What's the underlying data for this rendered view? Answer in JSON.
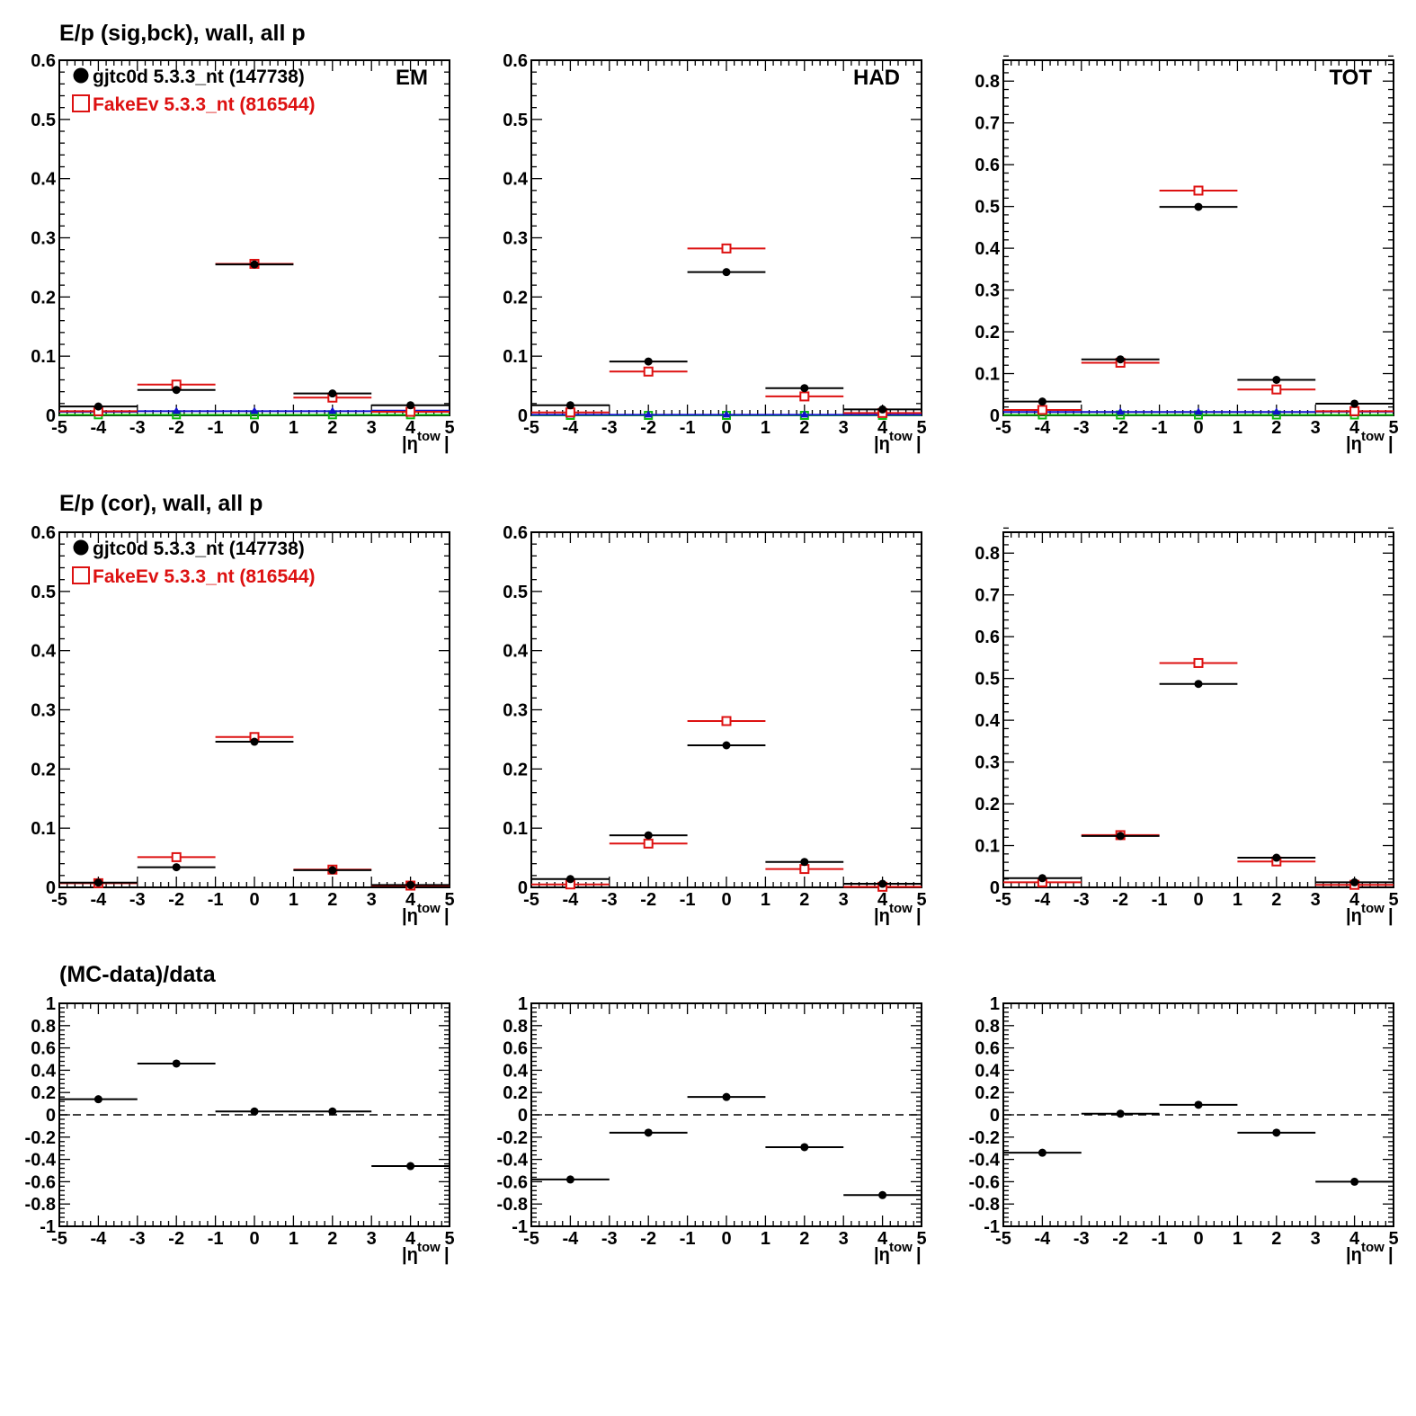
{
  "x_axis_label": "|η",
  "x_axis_label_sup": "tow",
  "x_axis_label_close": "|",
  "x_tick_labels": [
    "-5",
    "-4",
    "-3",
    "-2",
    "-1",
    "0",
    "1",
    "2",
    "3",
    "4",
    "5"
  ],
  "row_titles": [
    "E/p (sig,bck), wall, all p",
    "E/p (cor), wall, all p",
    "(MC-data)/data"
  ],
  "legend": [
    {
      "label": "gjtc0d 5.3.3_nt (147738)",
      "color": "#000000",
      "marker": "filled-circle"
    },
    {
      "label": "FakeEv 5.3.3_nt (816544)",
      "color": "#dd1111",
      "marker": "open-square"
    }
  ],
  "colors": {
    "data": "#000000",
    "mc": "#dd1111",
    "bck_data": "#1111cc",
    "bck_mc": "#11bb11",
    "zero_line": "#000000"
  },
  "chart_data": [
    {
      "type": "scatter",
      "row": 0,
      "col": 0,
      "panel_label": "EM",
      "legend": true,
      "xlim": [
        -5,
        5
      ],
      "ylim": [
        0,
        0.6
      ],
      "yticks": [
        0,
        0.1,
        0.2,
        0.3,
        0.4,
        0.5,
        0.6
      ],
      "ytick_labels": [
        "0",
        "0.1",
        "0.2",
        "0.3",
        "0.4",
        "0.5",
        "0.6"
      ],
      "bins": [
        [
          -5,
          -3
        ],
        [
          -3,
          -1
        ],
        [
          -1,
          1
        ],
        [
          1,
          3
        ],
        [
          3,
          5
        ]
      ],
      "series": [
        {
          "name": "gjtc0d 5.3.3_nt (147738)",
          "style": "data",
          "values": [
            0.015,
            0.043,
            0.255,
            0.037,
            0.017
          ]
        },
        {
          "name": "FakeEv 5.3.3_nt (816544)",
          "style": "mc",
          "values": [
            0.007,
            0.052,
            0.256,
            0.03,
            0.006
          ]
        },
        {
          "style": "bck_data",
          "values": [
            0.006,
            0.007,
            0.007,
            0.007,
            0.008
          ]
        },
        {
          "style": "bck_mc",
          "values": [
            0.001,
            0.001,
            0.001,
            0.001,
            0.001
          ]
        }
      ]
    },
    {
      "type": "scatter",
      "row": 0,
      "col": 1,
      "panel_label": "HAD",
      "legend": false,
      "xlim": [
        -5,
        5
      ],
      "ylim": [
        0,
        0.6
      ],
      "yticks": [
        0,
        0.1,
        0.2,
        0.3,
        0.4,
        0.5,
        0.6
      ],
      "ytick_labels": [
        "0",
        "0.1",
        "0.2",
        "0.3",
        "0.4",
        "0.5",
        "0.6"
      ],
      "bins": [
        [
          -5,
          -3
        ],
        [
          -3,
          -1
        ],
        [
          -1,
          1
        ],
        [
          1,
          3
        ],
        [
          3,
          5
        ]
      ],
      "series": [
        {
          "style": "data",
          "values": [
            0.017,
            0.091,
            0.242,
            0.046,
            0.01
          ]
        },
        {
          "style": "mc",
          "values": [
            0.005,
            0.074,
            0.282,
            0.032,
            0.004
          ]
        },
        {
          "style": "bck_data",
          "values": [
            0.001,
            0.001,
            0.001,
            0.001,
            0.001
          ]
        },
        {
          "style": "bck_mc",
          "values": [
            0.0,
            0.0,
            0.0,
            0.0,
            0.0
          ]
        }
      ]
    },
    {
      "type": "scatter",
      "row": 0,
      "col": 2,
      "panel_label": "TOT",
      "legend": false,
      "xlim": [
        -5,
        5
      ],
      "ylim": [
        0,
        0.85
      ],
      "yticks": [
        0,
        0.1,
        0.2,
        0.3,
        0.4,
        0.5,
        0.6,
        0.7,
        0.8
      ],
      "ytick_labels": [
        "0",
        "0.1",
        "0.2",
        "0.3",
        "0.4",
        "0.5",
        "0.6",
        "0.7",
        "0.8"
      ],
      "bins": [
        [
          -5,
          -3
        ],
        [
          -3,
          -1
        ],
        [
          -1,
          1
        ],
        [
          1,
          3
        ],
        [
          3,
          5
        ]
      ],
      "series": [
        {
          "style": "data",
          "values": [
            0.033,
            0.134,
            0.499,
            0.085,
            0.028
          ]
        },
        {
          "style": "mc",
          "values": [
            0.013,
            0.126,
            0.538,
            0.062,
            0.01
          ]
        },
        {
          "style": "bck_data",
          "values": [
            0.008,
            0.008,
            0.008,
            0.008,
            0.009
          ]
        },
        {
          "style": "bck_mc",
          "values": [
            0.001,
            0.001,
            0.001,
            0.001,
            0.001
          ]
        }
      ]
    },
    {
      "type": "scatter",
      "row": 1,
      "col": 0,
      "panel_label": "",
      "legend": true,
      "xlim": [
        -5,
        5
      ],
      "ylim": [
        0,
        0.6
      ],
      "yticks": [
        0,
        0.1,
        0.2,
        0.3,
        0.4,
        0.5,
        0.6
      ],
      "ytick_labels": [
        "0",
        "0.1",
        "0.2",
        "0.3",
        "0.4",
        "0.5",
        "0.6"
      ],
      "bins": [
        [
          -5,
          -3
        ],
        [
          -3,
          -1
        ],
        [
          -1,
          1
        ],
        [
          1,
          3
        ],
        [
          3,
          5
        ]
      ],
      "series": [
        {
          "name": "gjtc0d 5.3.3_nt (147738)",
          "style": "data",
          "values": [
            0.008,
            0.034,
            0.246,
            0.029,
            0.004
          ]
        },
        {
          "name": "FakeEv 5.3.3_nt (816544)",
          "style": "mc",
          "values": [
            0.007,
            0.051,
            0.254,
            0.03,
            0.003
          ]
        }
      ]
    },
    {
      "type": "scatter",
      "row": 1,
      "col": 1,
      "panel_label": "",
      "legend": false,
      "xlim": [
        -5,
        5
      ],
      "ylim": [
        0,
        0.6
      ],
      "yticks": [
        0,
        0.1,
        0.2,
        0.3,
        0.4,
        0.5,
        0.6
      ],
      "ytick_labels": [
        "0",
        "0.1",
        "0.2",
        "0.3",
        "0.4",
        "0.5",
        "0.6"
      ],
      "bins": [
        [
          -5,
          -3
        ],
        [
          -3,
          -1
        ],
        [
          -1,
          1
        ],
        [
          1,
          3
        ],
        [
          3,
          5
        ]
      ],
      "series": [
        {
          "style": "data",
          "values": [
            0.014,
            0.088,
            0.24,
            0.043,
            0.006
          ]
        },
        {
          "style": "mc",
          "values": [
            0.005,
            0.074,
            0.281,
            0.031,
            0.001
          ]
        }
      ]
    },
    {
      "type": "scatter",
      "row": 1,
      "col": 2,
      "panel_label": "",
      "legend": false,
      "xlim": [
        -5,
        5
      ],
      "ylim": [
        0,
        0.85
      ],
      "yticks": [
        0,
        0.1,
        0.2,
        0.3,
        0.4,
        0.5,
        0.6,
        0.7,
        0.8
      ],
      "ytick_labels": [
        "0",
        "0.1",
        "0.2",
        "0.3",
        "0.4",
        "0.5",
        "0.6",
        "0.7",
        "0.8"
      ],
      "bins": [
        [
          -5,
          -3
        ],
        [
          -3,
          -1
        ],
        [
          -1,
          1
        ],
        [
          1,
          3
        ],
        [
          3,
          5
        ]
      ],
      "series": [
        {
          "style": "data",
          "values": [
            0.022,
            0.123,
            0.487,
            0.071,
            0.012
          ]
        },
        {
          "style": "mc",
          "values": [
            0.012,
            0.125,
            0.537,
            0.062,
            0.006
          ]
        }
      ]
    },
    {
      "type": "scatter",
      "row": 2,
      "col": 0,
      "panel_label": "",
      "legend": false,
      "xlim": [
        -5,
        5
      ],
      "ylim": [
        -1,
        1
      ],
      "yticks": [
        -1,
        -0.8,
        -0.6,
        -0.4,
        -0.2,
        0,
        0.2,
        0.4,
        0.6,
        0.8,
        1
      ],
      "ytick_labels": [
        "-1",
        "-0.8",
        "-0.6",
        "-0.4",
        "-0.2",
        "0",
        "0.2",
        "0.4",
        "0.6",
        "0.8",
        "1"
      ],
      "zero_line": true,
      "bins": [
        [
          -5,
          -3
        ],
        [
          -3,
          -1
        ],
        [
          -1,
          1
        ],
        [
          1,
          3
        ],
        [
          3,
          5
        ]
      ],
      "series": [
        {
          "style": "data",
          "values": [
            0.14,
            0.46,
            0.03,
            0.03,
            -0.46
          ]
        }
      ]
    },
    {
      "type": "scatter",
      "row": 2,
      "col": 1,
      "panel_label": "",
      "legend": false,
      "xlim": [
        -5,
        5
      ],
      "ylim": [
        -1,
        1
      ],
      "yticks": [
        -1,
        -0.8,
        -0.6,
        -0.4,
        -0.2,
        0,
        0.2,
        0.4,
        0.6,
        0.8,
        1
      ],
      "ytick_labels": [
        "-1",
        "-0.8",
        "-0.6",
        "-0.4",
        "-0.2",
        "0",
        "0.2",
        "0.4",
        "0.6",
        "0.8",
        "1"
      ],
      "zero_line": true,
      "bins": [
        [
          -5,
          -3
        ],
        [
          -3,
          -1
        ],
        [
          -1,
          1
        ],
        [
          1,
          3
        ],
        [
          3,
          5
        ]
      ],
      "series": [
        {
          "style": "data",
          "values": [
            -0.58,
            -0.16,
            0.16,
            -0.29,
            -0.72
          ]
        }
      ]
    },
    {
      "type": "scatter",
      "row": 2,
      "col": 2,
      "panel_label": "",
      "legend": false,
      "xlim": [
        -5,
        5
      ],
      "ylim": [
        -1,
        1
      ],
      "yticks": [
        -1,
        -0.8,
        -0.6,
        -0.4,
        -0.2,
        0,
        0.2,
        0.4,
        0.6,
        0.8,
        1
      ],
      "ytick_labels": [
        "-1",
        "-0.8",
        "-0.6",
        "-0.4",
        "-0.2",
        "0",
        "0.2",
        "0.4",
        "0.6",
        "0.8",
        "1"
      ],
      "zero_line": true,
      "bins": [
        [
          -5,
          -3
        ],
        [
          -3,
          -1
        ],
        [
          -1,
          1
        ],
        [
          1,
          3
        ],
        [
          3,
          5
        ]
      ],
      "series": [
        {
          "style": "data",
          "values": [
            -0.34,
            0.01,
            0.09,
            -0.16,
            -0.6
          ]
        }
      ]
    }
  ]
}
